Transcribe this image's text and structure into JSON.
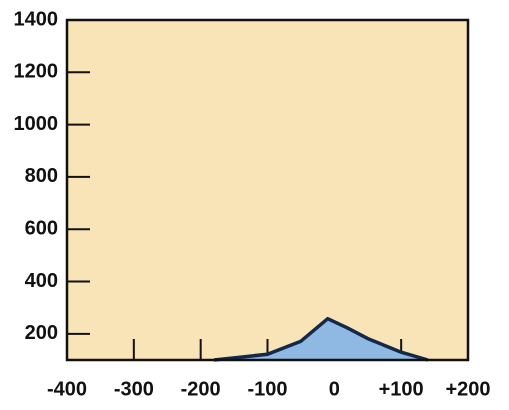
{
  "chart_data": {
    "type": "area",
    "x": [
      -180,
      -150,
      -100,
      -50,
      -10,
      20,
      50,
      100,
      140
    ],
    "values": [
      100,
      108,
      122,
      172,
      258,
      222,
      182,
      130,
      100
    ],
    "color": "#8fb9e3",
    "line_color": "#14284a",
    "background": "#f9e4b8",
    "xlim": [
      -400,
      200
    ],
    "xticks": [
      -400,
      -300,
      -200,
      -100,
      0,
      {
        "value": 100,
        "label": "+100"
      },
      {
        "value": 200,
        "label": "+200"
      }
    ],
    "ylim": [
      100,
      1400
    ],
    "yticks": [
      200,
      400,
      600,
      800,
      1000,
      1200,
      1400
    ]
  }
}
